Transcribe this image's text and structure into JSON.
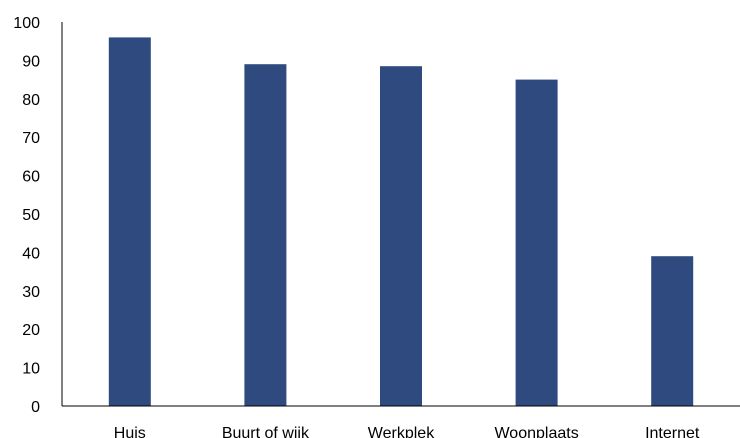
{
  "chart_data": {
    "type": "bar",
    "categories": [
      "Huis",
      "Buurt of wijk",
      "Werkplek",
      "Woonplaats",
      "Internet"
    ],
    "values": [
      96,
      89,
      88.5,
      85,
      39
    ],
    "title": "",
    "xlabel": "",
    "ylabel": "",
    "ylim": [
      0,
      100
    ],
    "yticks": [
      0,
      10,
      20,
      30,
      40,
      50,
      60,
      70,
      80,
      90,
      100
    ],
    "grid": false,
    "legend": "none",
    "bar_color": "#2E4A7F",
    "axis_color": "#000000"
  }
}
